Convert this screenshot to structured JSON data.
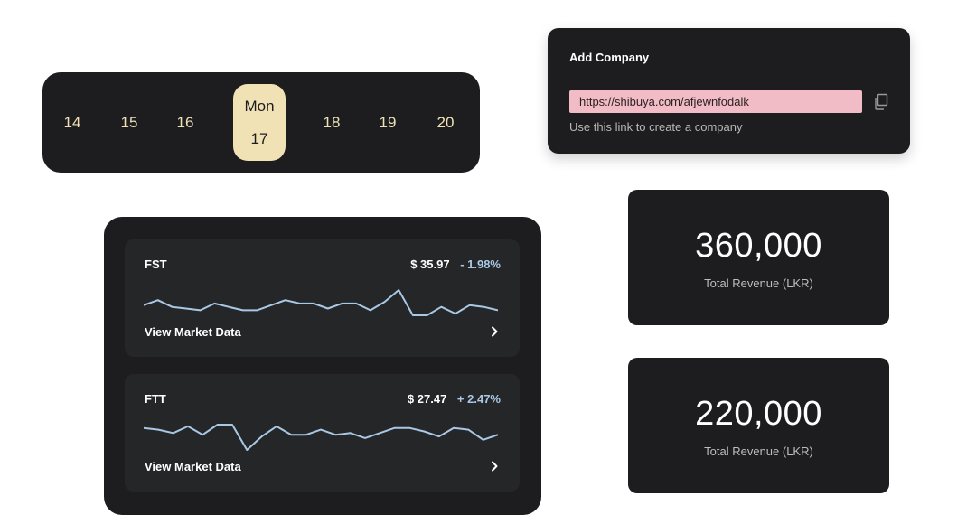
{
  "date_strip": {
    "days_before": [
      "14",
      "15",
      "16"
    ],
    "selected": {
      "weekday": "Mon",
      "day": "17"
    },
    "days_after": [
      "18",
      "19",
      "20"
    ]
  },
  "add_company": {
    "title": "Add Company",
    "link": "https://shibuya.com/afjewnfodalk",
    "hint": "Use this link to create a company",
    "copy_icon": "copy-icon"
  },
  "revenue_cards": [
    {
      "value": "360,000",
      "label": "Total Revenue (LKR)"
    },
    {
      "value": "220,000",
      "label": "Total Revenue (LKR)"
    }
  ],
  "market": [
    {
      "ticker": "FST",
      "price": "$ 35.97",
      "change": "-  1.98%",
      "link": "View Market Data",
      "sparkline": [
        4,
        7,
        3,
        2,
        1,
        5,
        3,
        1,
        1,
        4,
        7,
        5,
        5,
        2,
        5,
        5,
        1,
        6,
        13,
        -2,
        -2,
        3,
        -1,
        4,
        3,
        1
      ]
    },
    {
      "ticker": "FTT",
      "price": "$ 27.47",
      "change": "+ 2.47%",
      "link": "View Market Data",
      "sparkline": [
        7,
        6,
        4,
        8,
        3,
        9,
        9,
        -6,
        2,
        8,
        3,
        3,
        6,
        3,
        4,
        1,
        4,
        7,
        7,
        5,
        2,
        7,
        6,
        0,
        3
      ]
    }
  ],
  "colors": {
    "panel": "#1d1d1f",
    "card": "#252628",
    "accent_gold": "#f1e2b5",
    "link_bg": "#f2bcc6",
    "sparkline": "#a9c8e6"
  }
}
